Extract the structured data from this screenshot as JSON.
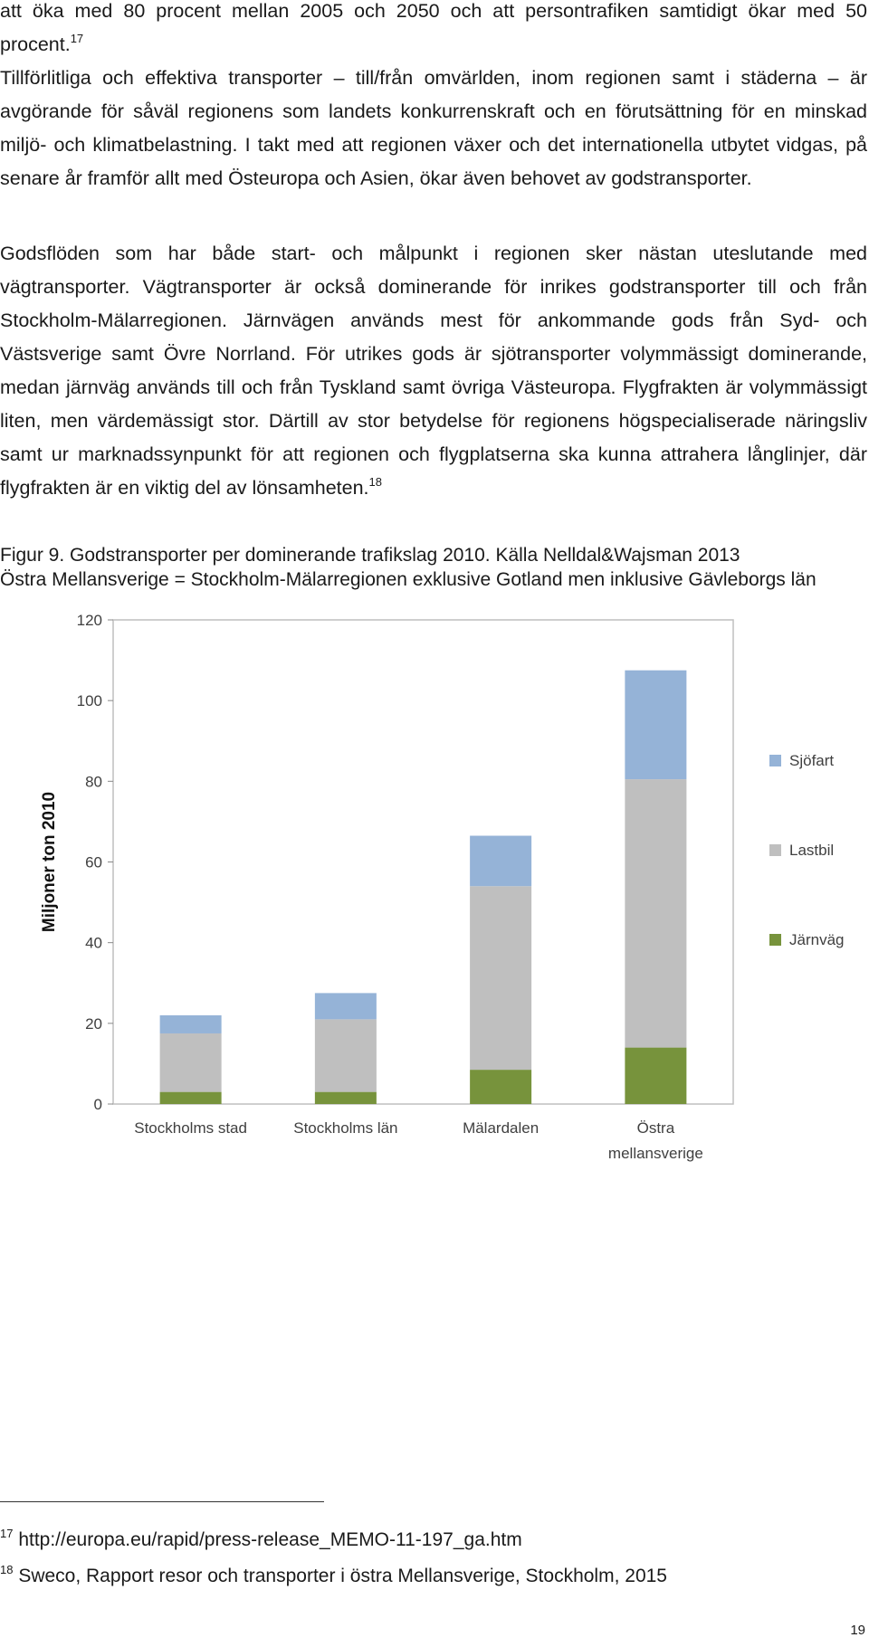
{
  "paragraphs": {
    "p1": "att öka med 80 procent mellan 2005 och 2050 och att persontrafiken samtidigt ökar med 50 procent.",
    "p1_ref": "17",
    "p2": "Tillförlitliga och effektiva transporter – till/från omvärlden, inom regionen samt i städerna – är avgörande för såväl regionens som landets konkurrenskraft och en förutsättning för en minskad miljö- och klimatbelastning. I takt med att regionen växer och det internationella utbytet vidgas, på senare år framför allt med Östeuropa och Asien, ökar även behovet av godstransporter.",
    "p3": "Godsflöden som har både start- och målpunkt i regionen sker nästan uteslutande med vägtransporter. Vägtransporter är också dominerande för inrikes godstransporter till och från Stockholm-Mälarregionen. Järnvägen används mest för ankommande gods från Syd- och Västsverige samt Övre Norrland. För utrikes gods är sjötransporter volymmässigt dominerande, medan järnväg används till och från Tyskland samt övriga Västeuropa. Flygfrakten är volymmässigt liten, men värdemässigt stor. Därtill av stor betydelse för regionens högspecialiserade näringsliv samt ur marknadssynpunkt för att regionen och flygplatserna ska kunna attrahera långlinjer, där flygfrakten är en viktig del av lönsamheten.",
    "p3_ref": "18"
  },
  "caption": {
    "line1": "Figur 9. Godstransporter per dominerande trafikslag 2010. Källa Nelldal&Wajsman 2013",
    "line2": "Östra Mellansverige = Stockholm-Mälarregionen exklusive Gotland men inklusive Gävleborgs län"
  },
  "chart_data": {
    "type": "bar",
    "stacked": true,
    "categories": [
      "Stockholms stad",
      "Stockholms län",
      "Mälardalen",
      "Östra mellansverige"
    ],
    "series": [
      {
        "name": "Järnväg",
        "color": "#77933c",
        "values": [
          3,
          3,
          8.5,
          14
        ]
      },
      {
        "name": "Lastbil",
        "color": "#bfbfbf",
        "values": [
          14.5,
          18,
          45.5,
          66.5
        ]
      },
      {
        "name": "Sjöfart",
        "color": "#95b3d7",
        "values": [
          4.5,
          6.5,
          12.5,
          27
        ]
      }
    ],
    "legend_order": [
      "Sjöfart",
      "Lastbil",
      "Järnväg"
    ],
    "legend_position": "right",
    "ylabel": "Miljoner ton 2010",
    "ylim": [
      0,
      120
    ],
    "yticks": [
      0,
      20,
      40,
      60,
      80,
      100,
      120
    ],
    "grid": false
  },
  "footnotes": [
    {
      "num": "17",
      "text": "http://europa.eu/rapid/press-release_MEMO-11-197_ga.htm"
    },
    {
      "num": "18",
      "text": "Sweco, Rapport resor och transporter i östra Mellansverige, Stockholm, 2015"
    }
  ],
  "page_number": "19"
}
